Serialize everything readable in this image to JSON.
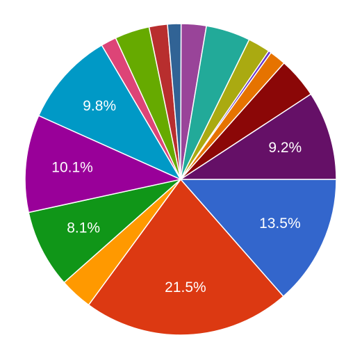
{
  "chart_data": {
    "type": "pie",
    "values": [
      13.5,
      21.5,
      3.4,
      8.1,
      10.1,
      9.8,
      1.6,
      3.6,
      1.9,
      1.4,
      2.6,
      4.6,
      2.3,
      0.3,
      1.7,
      4.2,
      9.2
    ],
    "value_labels": [
      "13.5%",
      "21.5%",
      null,
      "8.1%",
      "10.1%",
      "9.8%",
      null,
      null,
      null,
      null,
      null,
      null,
      null,
      null,
      null,
      null,
      "9.2%"
    ],
    "colors": [
      "#3366cc",
      "#dc3912",
      "#ff9900",
      "#109618",
      "#990099",
      "#0099c6",
      "#dd4477",
      "#66aa00",
      "#b82e2e",
      "#316395",
      "#994499",
      "#22aa99",
      "#aaaa11",
      "#6633cc",
      "#e67300",
      "#8b0707",
      "#651067"
    ]
  }
}
